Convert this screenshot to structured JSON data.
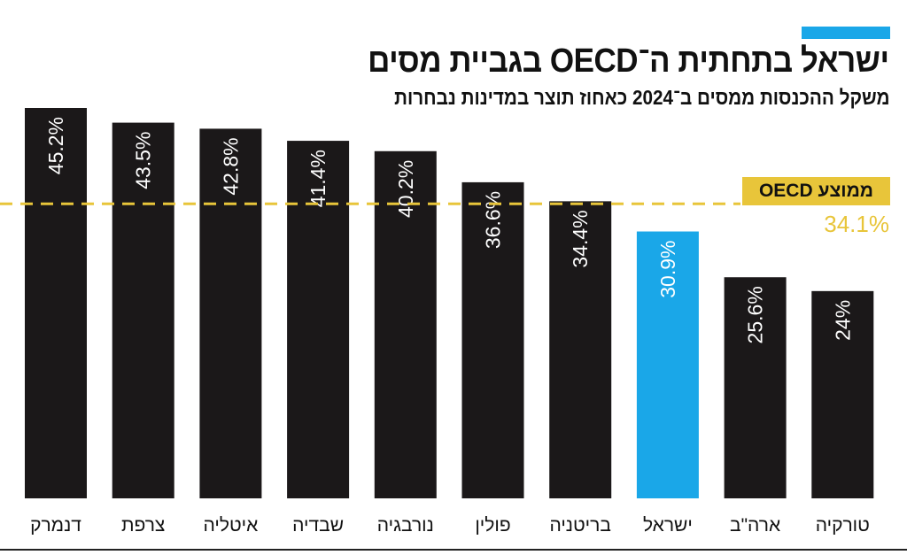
{
  "header": {
    "title": "ישראל בתחתית ה־OECD בגביית מסים",
    "subtitle": "משקל ההכנסות ממסים ב־2024 כאחוז תוצר במדינות נבחרות"
  },
  "colors": {
    "bar": "#1b1819",
    "highlight": "#1aa7e8",
    "average": "#e8c53a",
    "accent": "#1aa7e8"
  },
  "chart_data": {
    "type": "bar",
    "title": "ישראל בתחתית ה־OECD בגביית מסים",
    "subtitle": "משקל ההכנסות ממסים ב־2024 כאחוז תוצר במדינות נבחרות",
    "categories": [
      "דנמרק",
      "צרפת",
      "איטליה",
      "שבדיה",
      "נורבגיה",
      "פולין",
      "בריטניה",
      "ישראל",
      "ארה\"ב",
      "טורקיה"
    ],
    "values": [
      45.2,
      43.5,
      42.8,
      41.4,
      40.2,
      36.6,
      34.4,
      30.9,
      25.6,
      24
    ],
    "data_labels": [
      "45.2%",
      "43.5%",
      "42.8%",
      "41.4%",
      "40.2%",
      "36.6%",
      "34.4%",
      "30.9%",
      "25.6%",
      "24%"
    ],
    "highlight": "ישראל",
    "ylim": [
      0,
      46
    ],
    "grid": false,
    "reference_line": {
      "label": "ממוצע OECD",
      "value": 34.1,
      "value_label": "34.1%"
    }
  }
}
